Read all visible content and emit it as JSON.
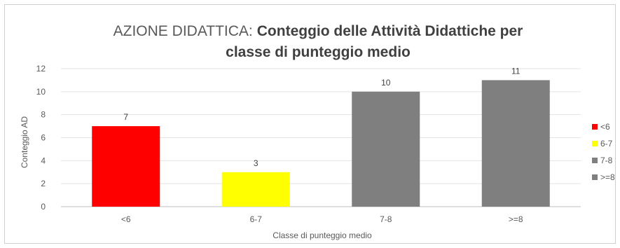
{
  "chart_data": {
    "type": "bar",
    "title_prefix": "AZIONE DIDATTICA:",
    "title_main_line1": "Conteggio delle Attività Didattiche per",
    "title_main_line2": "classe di punteggio medio",
    "categories": [
      "<6",
      "6-7",
      "7-8",
      ">=8"
    ],
    "values": [
      7,
      3,
      10,
      11
    ],
    "colors": [
      "#ff0000",
      "#ffff00",
      "#7f7f7f",
      "#7f7f7f"
    ],
    "xlabel": "Classe di punteggio medio",
    "ylabel": "Conteggio AD",
    "ylim": [
      0,
      12
    ],
    "yticks": [
      "0",
      "2",
      "4",
      "6",
      "8",
      "10",
      "12"
    ],
    "grid": true,
    "legend_position": "right",
    "legend": [
      {
        "label": "<6",
        "color": "#ff0000"
      },
      {
        "label": "6-7",
        "color": "#ffff00"
      },
      {
        "label": "7-8",
        "color": "#7f7f7f"
      },
      {
        "label": ">=8",
        "color": "#7f7f7f"
      }
    ]
  }
}
